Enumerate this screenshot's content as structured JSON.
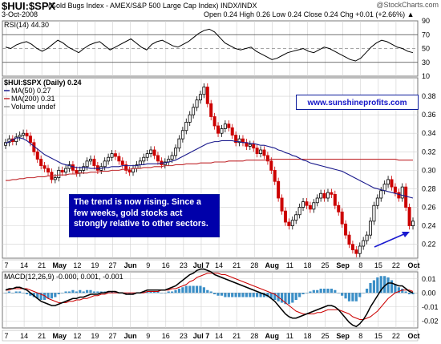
{
  "header": {
    "symbol": "$HUI:$SPX",
    "description": "(Gold Bugs Index - AMEX/S&P 500 Large Cap Index) INDX/INDX",
    "brand": "@StockCharts.com",
    "date": "3-Oct-2008",
    "ohlc": "Open 0.24  High 0.26  Low 0.24  Close 0.24  Chg +0.01 (+2.66%) ▲"
  },
  "site_link": "www.sunshineprofits.com",
  "annotation": "The trend is now rising. Since a few weeks, gold stocks act strongly relative to other sectors.",
  "colors": {
    "rsi_line": "#000000",
    "ma50": "#1a1a8c",
    "ma200": "#c0282c",
    "candle_up": "#000000",
    "candle_down": "#cc0000",
    "macd_line": "#000000",
    "signal_line": "#cc0000",
    "histogram": "#3b8fc7",
    "annotation_bg": "#0000aa",
    "arrow": "#1a1ad0"
  },
  "chart_data": [
    {
      "type": "line",
      "panel": "RSI",
      "label": "RSI(14) 44.30",
      "ylim": [
        10,
        90
      ],
      "yticks": [
        "90",
        "70",
        "50",
        "30",
        "10"
      ],
      "reference_lines": [
        70,
        50,
        30
      ],
      "series": [
        {
          "name": "RSI(14)",
          "values": [
            52,
            50,
            55,
            58,
            60,
            56,
            50,
            46,
            50,
            56,
            62,
            58,
            52,
            48,
            44,
            50,
            55,
            58,
            60,
            54,
            48,
            52,
            56,
            60,
            64,
            58,
            52,
            48,
            56,
            60,
            62,
            58,
            54,
            52,
            56,
            60,
            66,
            72,
            76,
            78,
            74,
            66,
            58,
            54,
            50,
            48,
            50,
            52,
            46,
            42,
            38,
            34,
            36,
            40,
            44,
            46,
            48,
            50,
            46,
            44,
            48,
            52,
            50,
            46,
            42,
            38,
            34,
            32,
            36,
            44,
            52,
            58,
            62,
            60,
            56,
            52,
            50,
            46,
            44
          ]
        }
      ]
    },
    {
      "type": "candlestick",
      "panel": "Price",
      "labels": [
        "$HUI:$SPX (Daily) 0.24",
        "MA(50) 0.27",
        "MA(200) 0.31",
        "Volume undef"
      ],
      "ylim": [
        0.205,
        0.4
      ],
      "yticks": [
        "0.38",
        "0.36",
        "0.34",
        "0.32",
        "0.30",
        "0.28",
        "0.26",
        "0.24",
        "0.22"
      ],
      "xticks": [
        "7",
        "14",
        "21",
        "May",
        "12",
        "19",
        "27",
        "Jun",
        "9",
        "16",
        "23",
        "Jul 7",
        "14",
        "21",
        "28",
        "Aug",
        "11",
        "18",
        "25",
        "Sep",
        "8",
        "15",
        "22",
        "Oct"
      ],
      "close": [
        0.33,
        0.334,
        0.331,
        0.336,
        0.338,
        0.34,
        0.337,
        0.33,
        0.32,
        0.312,
        0.305,
        0.302,
        0.298,
        0.29,
        0.292,
        0.3,
        0.298,
        0.302,
        0.306,
        0.3,
        0.297,
        0.3,
        0.304,
        0.31,
        0.312,
        0.305,
        0.3,
        0.304,
        0.31,
        0.314,
        0.318,
        0.315,
        0.31,
        0.306,
        0.3,
        0.298,
        0.302,
        0.306,
        0.31,
        0.314,
        0.318,
        0.322,
        0.316,
        0.31,
        0.306,
        0.309,
        0.312,
        0.316,
        0.324,
        0.334,
        0.343,
        0.352,
        0.36,
        0.368,
        0.376,
        0.382,
        0.39,
        0.372,
        0.358,
        0.348,
        0.34,
        0.345,
        0.35,
        0.346,
        0.338,
        0.33,
        0.334,
        0.33,
        0.326,
        0.328,
        0.324,
        0.318,
        0.322,
        0.316,
        0.31,
        0.3,
        0.288,
        0.27,
        0.256,
        0.244,
        0.24,
        0.246,
        0.252,
        0.26,
        0.266,
        0.262,
        0.258,
        0.265,
        0.27,
        0.275,
        0.27,
        0.276,
        0.274,
        0.262,
        0.255,
        0.242,
        0.23,
        0.22,
        0.214,
        0.21,
        0.218,
        0.224,
        0.23,
        0.245,
        0.262,
        0.27,
        0.278,
        0.285,
        0.29,
        0.282,
        0.276,
        0.27,
        0.282,
        0.26,
        0.24,
        0.245
      ],
      "ma50": [
        0.329,
        0.331,
        0.333,
        0.335,
        0.335,
        0.334,
        0.332,
        0.329,
        0.326,
        0.323,
        0.32,
        0.317,
        0.315,
        0.313,
        0.311,
        0.309,
        0.307,
        0.306,
        0.305,
        0.304,
        0.303,
        0.303,
        0.303,
        0.303,
        0.302,
        0.302,
        0.302,
        0.302,
        0.303,
        0.303,
        0.304,
        0.304,
        0.304,
        0.305,
        0.305,
        0.305,
        0.305,
        0.305,
        0.306,
        0.306,
        0.307,
        0.307,
        0.307,
        0.307,
        0.308,
        0.308,
        0.309,
        0.31,
        0.311,
        0.313,
        0.315,
        0.317,
        0.319,
        0.321,
        0.323,
        0.325,
        0.327,
        0.329,
        0.33,
        0.331,
        0.331,
        0.332,
        0.332,
        0.332,
        0.332,
        0.331,
        0.331,
        0.33,
        0.33,
        0.329,
        0.329,
        0.328,
        0.327,
        0.327,
        0.326,
        0.325,
        0.324,
        0.322,
        0.321,
        0.319,
        0.318,
        0.316,
        0.315,
        0.313,
        0.311,
        0.31,
        0.308,
        0.307,
        0.306,
        0.305,
        0.304,
        0.303,
        0.302,
        0.301,
        0.3,
        0.299,
        0.297,
        0.295,
        0.293,
        0.291,
        0.289,
        0.287,
        0.285,
        0.283,
        0.281,
        0.28,
        0.279,
        0.278,
        0.277,
        0.276,
        0.275,
        0.274,
        0.273,
        0.272,
        0.271,
        0.27
      ],
      "ma200": [
        0.289,
        0.289,
        0.29,
        0.29,
        0.291,
        0.291,
        0.292,
        0.292,
        0.292,
        0.293,
        0.293,
        0.293,
        0.294,
        0.294,
        0.294,
        0.295,
        0.295,
        0.295,
        0.296,
        0.296,
        0.296,
        0.297,
        0.297,
        0.297,
        0.298,
        0.298,
        0.298,
        0.299,
        0.299,
        0.299,
        0.3,
        0.3,
        0.3,
        0.301,
        0.301,
        0.301,
        0.302,
        0.302,
        0.302,
        0.303,
        0.303,
        0.303,
        0.304,
        0.304,
        0.304,
        0.305,
        0.305,
        0.305,
        0.306,
        0.306,
        0.306,
        0.307,
        0.307,
        0.307,
        0.307,
        0.308,
        0.308,
        0.308,
        0.308,
        0.309,
        0.309,
        0.309,
        0.309,
        0.31,
        0.31,
        0.31,
        0.31,
        0.31,
        0.311,
        0.311,
        0.311,
        0.311,
        0.311,
        0.311,
        0.311,
        0.312,
        0.312,
        0.312,
        0.312,
        0.312,
        0.312,
        0.312,
        0.312,
        0.312,
        0.312,
        0.312,
        0.312,
        0.312,
        0.312,
        0.312,
        0.312,
        0.312,
        0.312,
        0.312,
        0.312,
        0.312,
        0.312,
        0.312,
        0.312,
        0.312,
        0.312,
        0.312,
        0.312,
        0.312,
        0.312,
        0.312,
        0.312,
        0.312,
        0.312,
        0.312,
        0.312,
        0.311,
        0.311,
        0.311,
        0.311,
        0.311
      ]
    },
    {
      "type": "line",
      "panel": "MACD",
      "label": "MACD(12,26,9) -0.000, 0.001, -0.001",
      "ylim": [
        -0.025,
        0.015
      ],
      "yticks": [
        "0.01",
        "0.00",
        "-0.01",
        "-0.02"
      ],
      "series": [
        {
          "name": "MACD(12,26,9)",
          "values": [
            0.002,
            0.003,
            0.003,
            0.004,
            0.004,
            0.003,
            0.002,
            0.0,
            -0.002,
            -0.004,
            -0.006,
            -0.007,
            -0.008,
            -0.009,
            -0.009,
            -0.008,
            -0.007,
            -0.006,
            -0.005,
            -0.004,
            -0.004,
            -0.003,
            -0.003,
            -0.002,
            -0.001,
            -0.001,
            -0.001,
            0.0,
            0.0,
            0.001,
            0.001,
            0.001,
            0.0,
            0.0,
            -0.001,
            -0.001,
            -0.001,
            0.0,
            0.0,
            0.001,
            0.002,
            0.002,
            0.002,
            0.002,
            0.002,
            0.002,
            0.003,
            0.004,
            0.005,
            0.007,
            0.009,
            0.011,
            0.013,
            0.014,
            0.016,
            0.017,
            0.017,
            0.016,
            0.015,
            0.013,
            0.012,
            0.011,
            0.01,
            0.009,
            0.008,
            0.007,
            0.006,
            0.005,
            0.004,
            0.003,
            0.002,
            0.001,
            0.0,
            -0.001,
            -0.002,
            -0.004,
            -0.006,
            -0.009,
            -0.012,
            -0.015,
            -0.017,
            -0.018,
            -0.018,
            -0.017,
            -0.016,
            -0.015,
            -0.014,
            -0.013,
            -0.012,
            -0.011,
            -0.01,
            -0.009,
            -0.009,
            -0.01,
            -0.012,
            -0.015,
            -0.018,
            -0.021,
            -0.023,
            -0.024,
            -0.022,
            -0.019,
            -0.015,
            -0.01,
            -0.006,
            -0.002,
            0.002,
            0.005,
            0.007,
            0.007,
            0.006,
            0.005,
            0.005,
            0.003,
            0.001,
            -0.0
          ]
        },
        {
          "name": "Signal",
          "values": [
            0.002,
            0.002,
            0.003,
            0.003,
            0.003,
            0.003,
            0.003,
            0.002,
            0.001,
            0.0,
            -0.001,
            -0.002,
            -0.004,
            -0.005,
            -0.006,
            -0.007,
            -0.007,
            -0.007,
            -0.006,
            -0.006,
            -0.005,
            -0.005,
            -0.004,
            -0.004,
            -0.003,
            -0.002,
            -0.002,
            -0.001,
            -0.001,
            0.0,
            0.0,
            0.0,
            0.0,
            0.0,
            0.0,
            0.0,
            0.0,
            0.0,
            0.0,
            0.0,
            0.001,
            0.001,
            0.001,
            0.001,
            0.002,
            0.002,
            0.002,
            0.003,
            0.003,
            0.004,
            0.005,
            0.006,
            0.008,
            0.009,
            0.011,
            0.012,
            0.013,
            0.014,
            0.014,
            0.014,
            0.014,
            0.013,
            0.013,
            0.012,
            0.011,
            0.01,
            0.009,
            0.008,
            0.007,
            0.006,
            0.005,
            0.004,
            0.003,
            0.002,
            0.001,
            0.0,
            -0.001,
            -0.003,
            -0.005,
            -0.007,
            -0.009,
            -0.011,
            -0.013,
            -0.014,
            -0.015,
            -0.015,
            -0.015,
            -0.015,
            -0.014,
            -0.014,
            -0.013,
            -0.012,
            -0.012,
            -0.012,
            -0.012,
            -0.013,
            -0.014,
            -0.015,
            -0.017,
            -0.018,
            -0.019,
            -0.019,
            -0.018,
            -0.017,
            -0.015,
            -0.013,
            -0.01,
            -0.007,
            -0.004,
            -0.002,
            0.0,
            0.001,
            0.002,
            0.002,
            0.002,
            0.001
          ]
        },
        {
          "name": "Histogram",
          "values": []
        }
      ]
    }
  ]
}
